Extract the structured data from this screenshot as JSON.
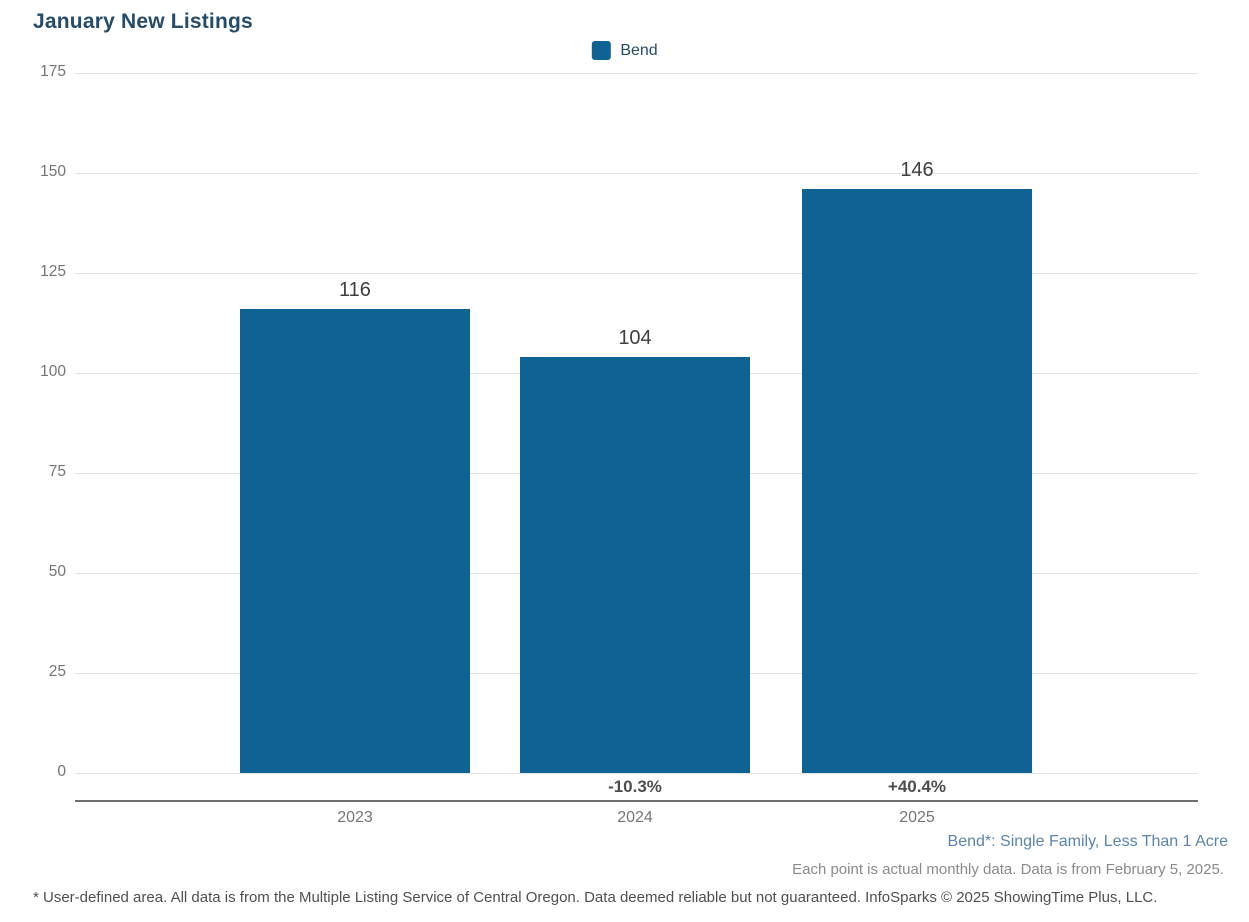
{
  "title": "January New Listings",
  "legend": {
    "label": "Bend"
  },
  "colors": {
    "bar": "#0e6294",
    "title": "#254b6a",
    "legend_text": "#254b6a",
    "grid": "#e2e2e2",
    "axis_line": "#6e6e6e",
    "ytick": "#757575",
    "xtick": "#757575",
    "value_label": "#3f3f3f",
    "pct_label": "#4d4d4d",
    "series_note": "#5b84ad",
    "data_note": "#8a8a8a",
    "footer": "#4f4f4f"
  },
  "chart_data": {
    "type": "bar",
    "title": "January New Listings",
    "categories": [
      "2023",
      "2024",
      "2025"
    ],
    "series": [
      {
        "name": "Bend",
        "values": [
          116,
          104,
          146
        ]
      }
    ],
    "bar_labels": [
      "116",
      "104",
      "146"
    ],
    "pct_change_labels": [
      "",
      "-10.3%",
      "+40.4%"
    ],
    "xlabel": "",
    "ylabel": "",
    "ylim": [
      0,
      175
    ],
    "ytick_step": 25,
    "yticks": [
      0,
      25,
      50,
      75,
      100,
      125,
      150,
      175
    ],
    "grid": true,
    "legend_position": "top-center"
  },
  "annotations": {
    "series_note": "Bend*: Single Family, Less Than 1 Acre",
    "data_note": "Each point is actual monthly data. Data is from February 5, 2025.",
    "footer": "* User-defined area. All data is from the Multiple Listing Service of Central Oregon. Data deemed reliable but not guaranteed. InfoSparks © 2025 ShowingTime Plus, LLC."
  }
}
